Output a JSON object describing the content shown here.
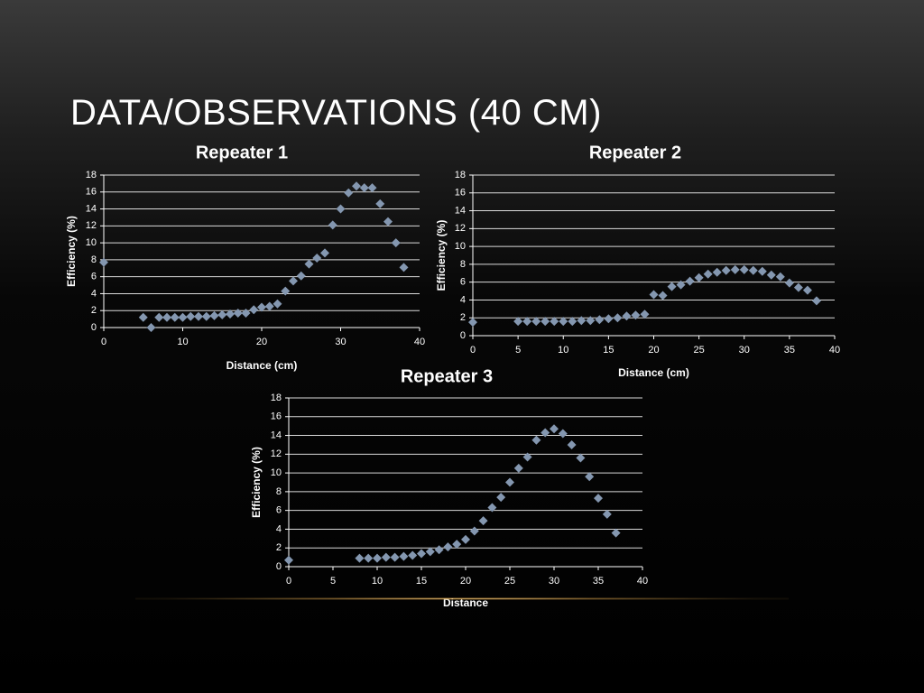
{
  "slide": {
    "title": "DATA/OBSERVATIONS (40 CM)"
  },
  "colors": {
    "marker": "#8497b0",
    "text": "#ffffff",
    "gridline": "#ffffff",
    "accent_line": "#d8a65a"
  },
  "chart_data": [
    {
      "type": "scatter",
      "title": "Repeater 1",
      "xlabel": "Distance (cm)",
      "ylabel": "Efficiency (%)",
      "xlim": [
        0,
        40
      ],
      "ylim": [
        0,
        18
      ],
      "xticks": [
        0,
        10,
        20,
        30,
        40
      ],
      "yticks": [
        0,
        2,
        4,
        6,
        8,
        10,
        12,
        14,
        16,
        18
      ],
      "grid": "horizontal",
      "marker": "diamond",
      "x": [
        0,
        5,
        6,
        7,
        8,
        9,
        10,
        11,
        12,
        13,
        14,
        15,
        16,
        17,
        18,
        19,
        20,
        21,
        22,
        23,
        24,
        25,
        26,
        27,
        28,
        29,
        30,
        31,
        32,
        33,
        34,
        35,
        36,
        37,
        38
      ],
      "y": [
        7.7,
        1.2,
        0.0,
        1.2,
        1.2,
        1.2,
        1.2,
        1.3,
        1.3,
        1.3,
        1.4,
        1.5,
        1.6,
        1.7,
        1.7,
        2.1,
        2.4,
        2.5,
        2.8,
        4.3,
        5.5,
        6.1,
        7.5,
        8.2,
        8.8,
        12.1,
        14.0,
        15.9,
        16.7,
        16.5,
        16.5,
        14.6,
        12.5,
        10.0,
        7.1
      ]
    },
    {
      "type": "scatter",
      "title": "Repeater 2",
      "xlabel": "Distance (cm)",
      "ylabel": "Efficiency (%)",
      "xlim": [
        0,
        40
      ],
      "ylim": [
        0,
        18
      ],
      "xticks": [
        0,
        5,
        10,
        15,
        20,
        25,
        30,
        35,
        40
      ],
      "yticks": [
        0,
        2,
        4,
        6,
        8,
        10,
        12,
        14,
        16,
        18
      ],
      "grid": "horizontal",
      "marker": "diamond",
      "x": [
        0,
        5,
        6,
        7,
        8,
        9,
        10,
        11,
        12,
        13,
        14,
        15,
        16,
        17,
        18,
        19,
        20,
        21,
        22,
        23,
        24,
        25,
        26,
        27,
        28,
        29,
        30,
        31,
        32,
        33,
        34,
        35,
        36,
        37,
        38
      ],
      "y": [
        1.5,
        1.6,
        1.6,
        1.6,
        1.6,
        1.6,
        1.6,
        1.6,
        1.7,
        1.7,
        1.8,
        1.9,
        2.0,
        2.2,
        2.3,
        2.4,
        4.6,
        4.5,
        5.5,
        5.7,
        6.1,
        6.5,
        6.9,
        7.1,
        7.3,
        7.4,
        7.4,
        7.3,
        7.2,
        6.8,
        6.6,
        5.9,
        5.4,
        5.1,
        3.9
      ]
    },
    {
      "type": "scatter",
      "title": "Repeater 3",
      "xlabel": "Distance",
      "ylabel": "Efficiency (%)",
      "xlim": [
        0,
        40
      ],
      "ylim": [
        0,
        18
      ],
      "xticks": [
        0,
        5,
        10,
        15,
        20,
        25,
        30,
        35,
        40
      ],
      "yticks": [
        0,
        2,
        4,
        6,
        8,
        10,
        12,
        14,
        16,
        18
      ],
      "grid": "horizontal",
      "marker": "diamond",
      "x": [
        0,
        8,
        9,
        10,
        11,
        12,
        13,
        14,
        15,
        16,
        17,
        18,
        19,
        20,
        21,
        22,
        23,
        24,
        25,
        26,
        27,
        28,
        29,
        30,
        31,
        32,
        33,
        34,
        35,
        36,
        37
      ],
      "y": [
        0.7,
        0.9,
        0.9,
        0.9,
        1.0,
        1.0,
        1.1,
        1.2,
        1.4,
        1.6,
        1.8,
        2.1,
        2.4,
        2.9,
        3.8,
        4.9,
        6.3,
        7.4,
        9.0,
        10.5,
        11.7,
        13.5,
        14.3,
        14.7,
        14.2,
        13.0,
        11.6,
        9.6,
        7.3,
        5.6,
        3.6
      ]
    }
  ]
}
